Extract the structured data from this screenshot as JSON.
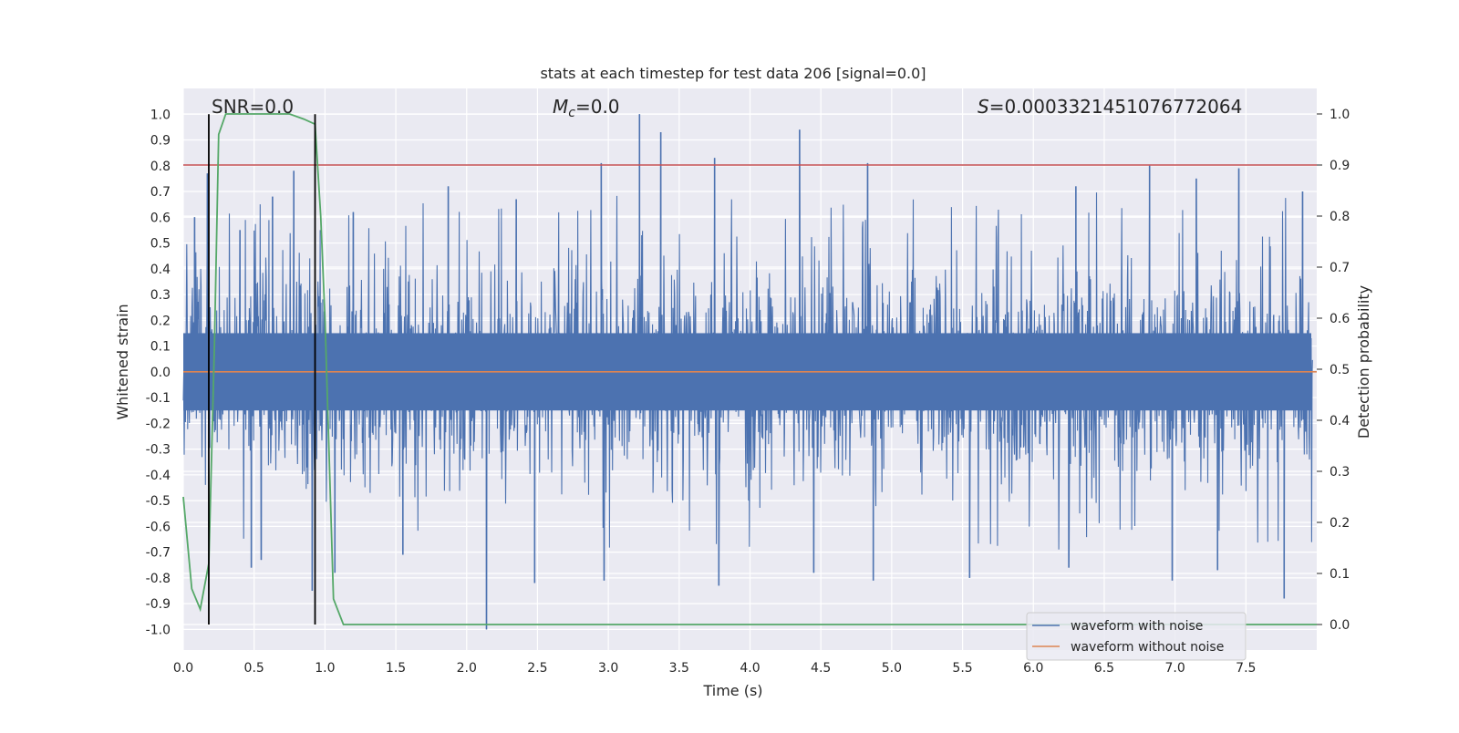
{
  "chart_data": {
    "type": "line",
    "title": "stats at each timestep for test data 206 [signal=0.0]",
    "xlabel": "Time (s)",
    "ylabel": "Whitened strain",
    "ylabel_right": "Detection probability",
    "xlim": [
      0.0,
      8.0
    ],
    "ylim": [
      -1.08,
      1.1
    ],
    "ylim_right": [
      -0.05,
      1.05
    ],
    "x_ticks": [
      0.0,
      0.5,
      1.0,
      1.5,
      2.0,
      2.5,
      3.0,
      3.5,
      4.0,
      4.5,
      5.0,
      5.5,
      6.0,
      6.5,
      7.0,
      7.5
    ],
    "x_tick_labels": [
      "0.0",
      "0.5",
      "1.0",
      "1.5",
      "2.0",
      "2.5",
      "3.0",
      "3.5",
      "4.0",
      "4.5",
      "5.0",
      "5.5",
      "6.0",
      "6.5",
      "7.0",
      "7.5"
    ],
    "y_ticks": [
      1.0,
      0.9,
      0.8,
      0.7,
      0.6,
      0.5,
      0.4,
      0.3,
      0.2,
      0.1,
      0.0,
      -0.1,
      -0.2,
      -0.3,
      -0.4,
      -0.5,
      -0.6,
      -0.7,
      -0.8,
      -0.9,
      -1.0
    ],
    "y_tick_labels": [
      "1.0",
      "0.9",
      "0.8",
      "0.7",
      "0.6",
      "0.5",
      "0.4",
      "0.3",
      "0.2",
      "0.1",
      "0.0",
      "-0.1",
      "-0.2",
      "-0.3",
      "-0.4",
      "-0.5",
      "-0.6",
      "-0.7",
      "-0.8",
      "-0.9",
      "-1.0"
    ],
    "y_right_ticks": [
      1.0,
      0.9,
      0.8,
      0.7,
      0.6,
      0.5,
      0.4,
      0.3,
      0.2,
      0.1,
      0.0
    ],
    "y_right_tick_labels": [
      "1.0",
      "0.9",
      "0.8",
      "0.7",
      "0.6",
      "0.5",
      "0.4",
      "0.3",
      "0.2",
      "0.1",
      "0.0"
    ],
    "annotations": {
      "snr": "SNR=0.0",
      "mc_symbol": "M",
      "mc_sub": "c",
      "mc_value": "=0.0",
      "s_symbol": "S",
      "s_value": "=0.0003321451076772064"
    },
    "threshold_line": {
      "value_right": 0.9,
      "color": "#c44e52"
    },
    "vertical_markers": {
      "x": [
        0.18,
        0.93
      ],
      "color": "#000000"
    },
    "series": [
      {
        "name": "waveform with noise",
        "color": "#4c72b0",
        "note": "dense noisy whitened strain; band mostly within ±0.45 with spikes",
        "spikes_up": [
          [
            0.08,
            0.6
          ],
          [
            0.17,
            0.77
          ],
          [
            0.4,
            0.55
          ],
          [
            0.63,
            0.68
          ],
          [
            0.78,
            0.78
          ],
          [
            1.2,
            0.62
          ],
          [
            1.87,
            0.72
          ],
          [
            2.35,
            0.67
          ],
          [
            2.95,
            0.81
          ],
          [
            3.22,
            1.0
          ],
          [
            3.37,
            0.93
          ],
          [
            3.75,
            0.83
          ],
          [
            4.35,
            0.94
          ],
          [
            4.83,
            0.81
          ],
          [
            6.3,
            0.72
          ],
          [
            6.82,
            0.8
          ],
          [
            7.15,
            0.75
          ],
          [
            7.45,
            0.79
          ],
          [
            7.9,
            0.7
          ]
        ],
        "spikes_down": [
          [
            0.48,
            -0.76
          ],
          [
            0.55,
            -0.73
          ],
          [
            0.91,
            -0.85
          ],
          [
            1.07,
            -0.78
          ],
          [
            1.55,
            -0.71
          ],
          [
            2.14,
            -1.0
          ],
          [
            2.48,
            -0.82
          ],
          [
            2.97,
            -0.81
          ],
          [
            3.78,
            -0.83
          ],
          [
            4.45,
            -0.78
          ],
          [
            4.87,
            -0.81
          ],
          [
            5.55,
            -0.8
          ],
          [
            6.25,
            -0.76
          ],
          [
            6.98,
            -0.81
          ],
          [
            7.3,
            -0.77
          ],
          [
            7.77,
            -0.88
          ]
        ]
      },
      {
        "name": "waveform without noise",
        "color": "#dd8452",
        "value": 0.0
      },
      {
        "name": "detection probability",
        "color": "#55a868",
        "axis": "right",
        "x": [
          0.0,
          0.06,
          0.12,
          0.18,
          0.22,
          0.25,
          0.3,
          0.35,
          0.45,
          0.6,
          0.75,
          0.85,
          0.93,
          0.97,
          1.0,
          1.06,
          1.13,
          1.2,
          2.0,
          4.0,
          6.0,
          8.0
        ],
        "y": [
          0.25,
          0.07,
          0.03,
          0.12,
          0.55,
          0.96,
          1.0,
          1.0,
          1.0,
          1.0,
          1.0,
          0.99,
          0.98,
          0.8,
          0.6,
          0.05,
          0.0,
          0.0,
          0.0,
          0.0,
          0.0,
          0.0
        ]
      }
    ],
    "legend": {
      "placement": "bottom-right",
      "entries": [
        "waveform with noise",
        "waveform without noise"
      ]
    },
    "style": {
      "plot_bg": "#eaeaf2",
      "grid": true,
      "grid_color": "#ffffff"
    }
  }
}
